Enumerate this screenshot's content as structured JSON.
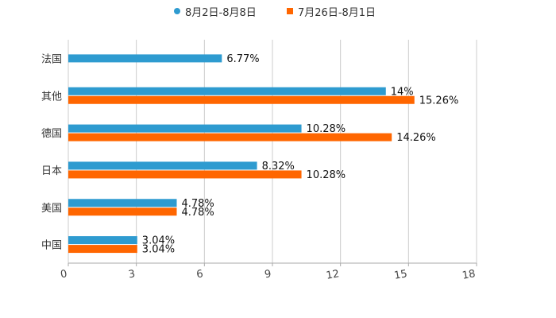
{
  "chart_data": {
    "type": "bar",
    "orientation": "horizontal",
    "title": "",
    "xlabel": "",
    "ylabel": "",
    "categories": [
      "法国",
      "其他",
      "德国",
      "日本",
      "美国",
      "中国"
    ],
    "series": [
      {
        "name": "8月2日-8月8日",
        "color": "#2e9bd0",
        "marker": "circle",
        "values": [
          6.77,
          14,
          10.28,
          8.32,
          4.78,
          3.04
        ],
        "labels": [
          "6.77%",
          "14%",
          "10.28%",
          "8.32%",
          "4.78%",
          "3.04%"
        ]
      },
      {
        "name": "7月26日-8月1日",
        "color": "#ff6600",
        "marker": "square",
        "values": [
          null,
          15.26,
          14.26,
          10.28,
          4.78,
          3.04
        ],
        "labels": [
          "",
          "15.26%",
          "14.26%",
          "10.28%",
          "4.78%",
          "3.04%"
        ]
      }
    ],
    "xlim": [
      0,
      18
    ],
    "xticks": [
      "0",
      "3",
      "6",
      "9",
      "12",
      "15",
      "18"
    ],
    "grid": true,
    "legend_position": "top-center"
  }
}
